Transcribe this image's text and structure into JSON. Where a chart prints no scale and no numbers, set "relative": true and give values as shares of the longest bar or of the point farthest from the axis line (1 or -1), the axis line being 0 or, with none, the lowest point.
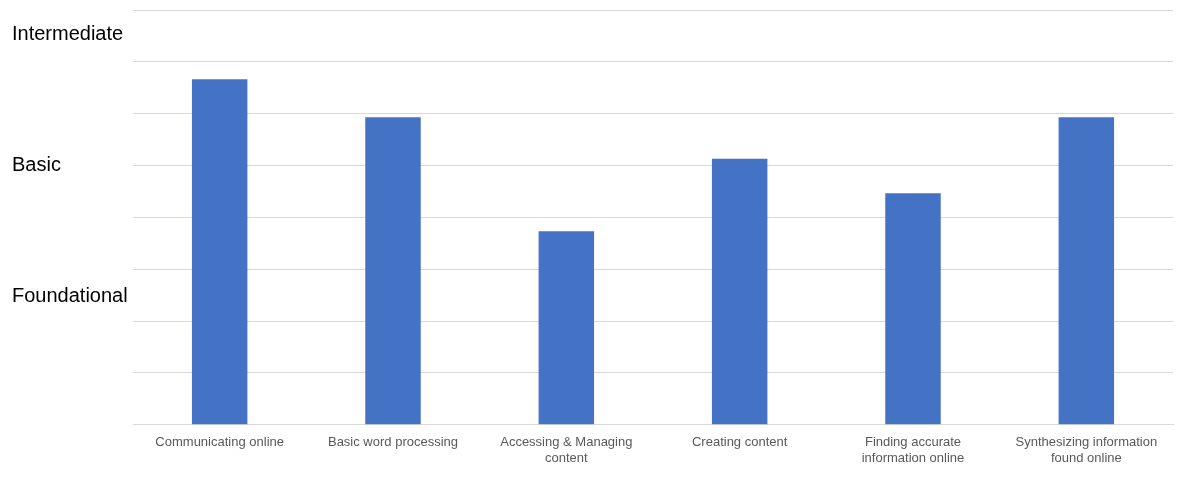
{
  "chart_data": {
    "type": "bar",
    "categories": [
      "Communicating online",
      "Basic word processing",
      "Accessing & Managing content",
      "Creating content",
      "Finding accurate information online",
      "Synthesizing information found online"
    ],
    "values": [
      1,
      0.89,
      0.56,
      0.77,
      0.67,
      0.89
    ],
    "relative": true,
    "color": "#4472c4",
    "annotations": [
      "Intermediate",
      "Basic",
      "Foundational"
    ],
    "grid": "y",
    "legend": false
  }
}
